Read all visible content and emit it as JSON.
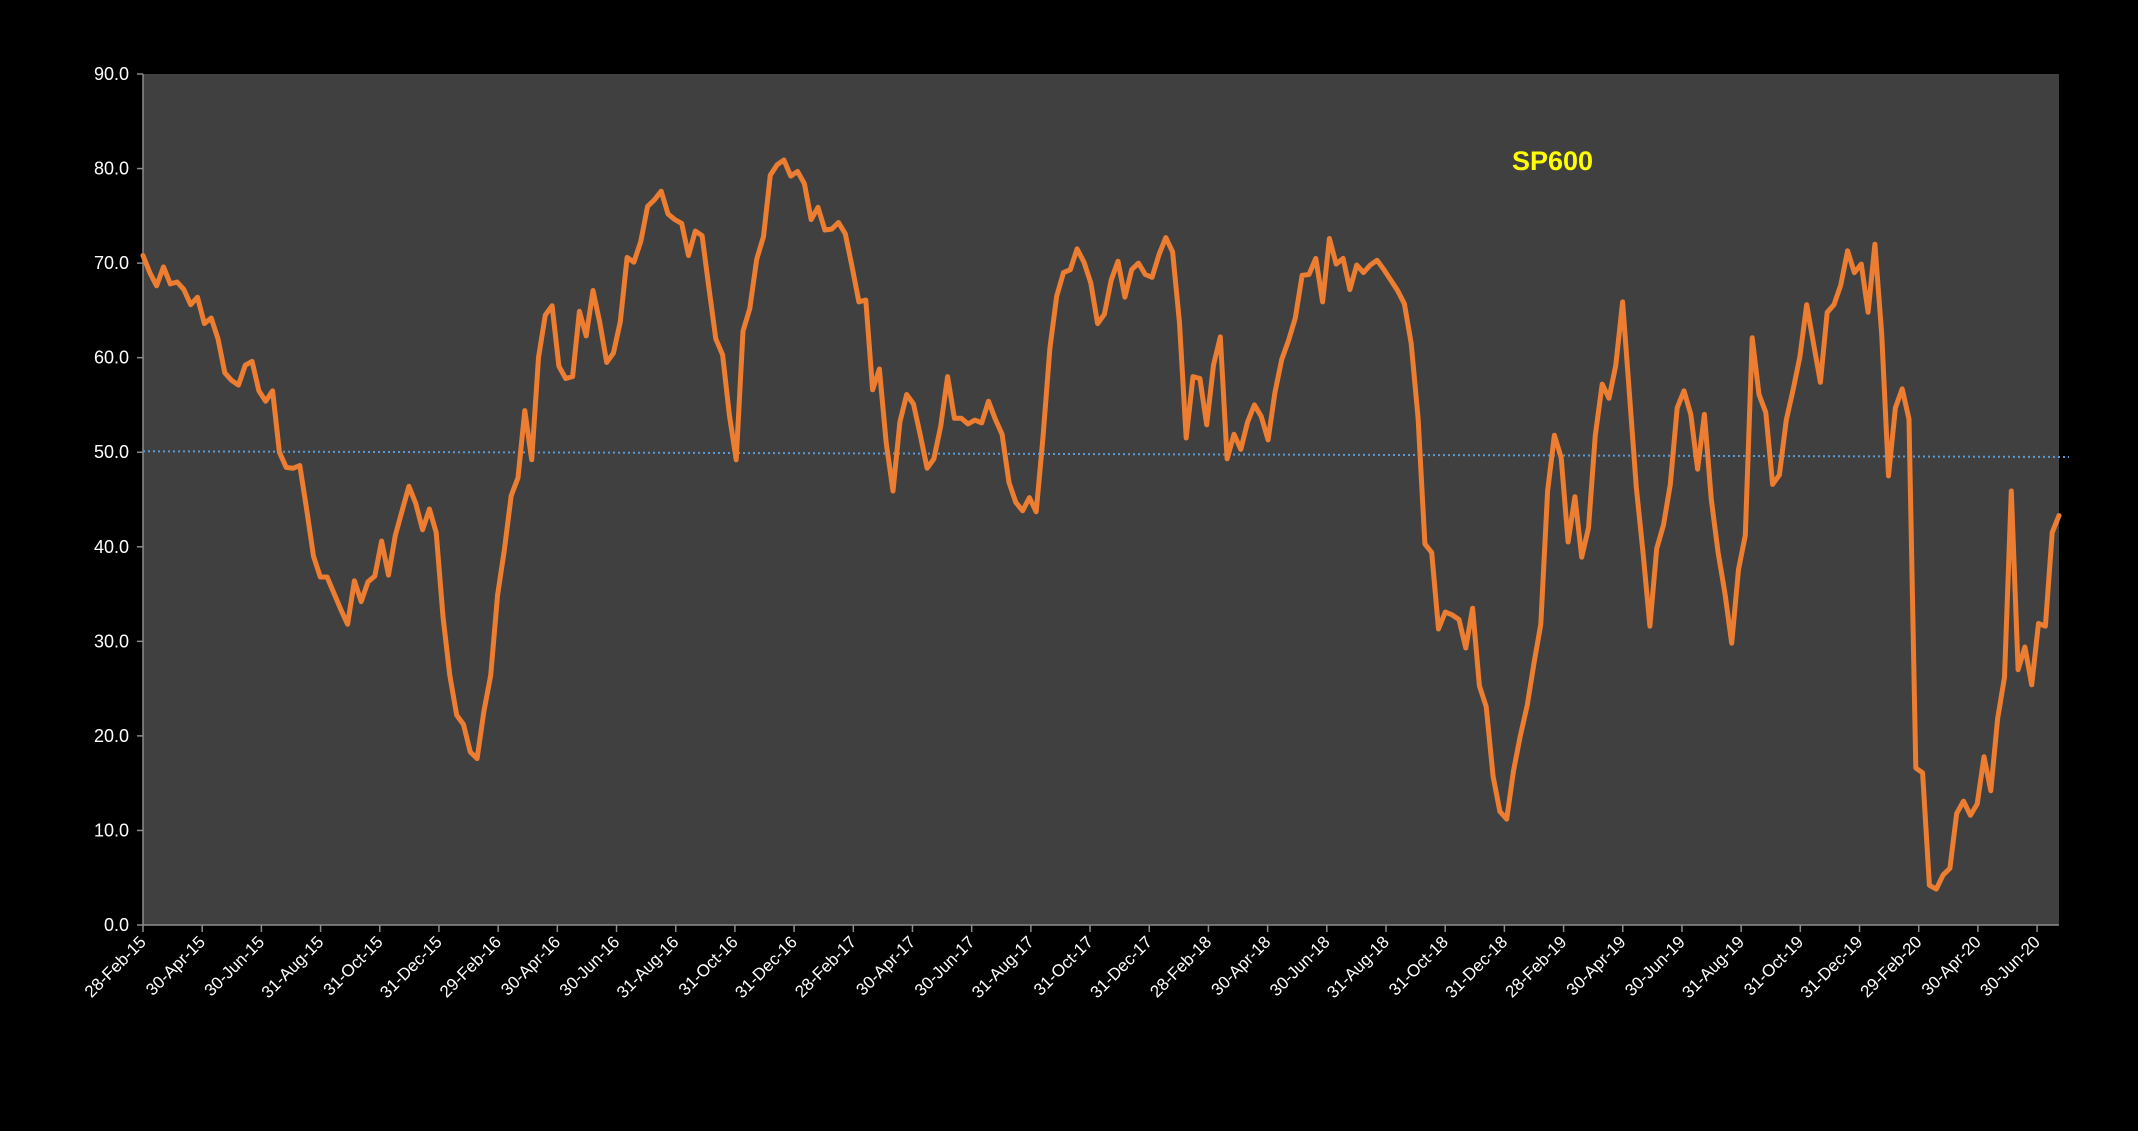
{
  "chart_data": {
    "type": "line",
    "title": "SP600",
    "xlabel": "",
    "ylabel": "",
    "ylim": [
      0,
      90
    ],
    "ytick_step": 10,
    "yticks": [
      "0.0",
      "10.0",
      "20.0",
      "30.0",
      "40.0",
      "50.0",
      "60.0",
      "70.0",
      "80.0",
      "90.0"
    ],
    "xtick_labels": [
      "28-Feb-15",
      "30-Apr-15",
      "30-Jun-15",
      "31-Aug-15",
      "31-Oct-15",
      "31-Dec-15",
      "29-Feb-16",
      "30-Apr-16",
      "30-Jun-16",
      "31-Aug-16",
      "31-Oct-16",
      "31-Dec-16",
      "28-Feb-17",
      "30-Apr-17",
      "30-Jun-17",
      "31-Aug-17",
      "31-Oct-17",
      "31-Dec-17",
      "28-Feb-18",
      "30-Apr-18",
      "30-Jun-18",
      "31-Aug-18",
      "31-Oct-18",
      "31-Dec-18",
      "28-Feb-19",
      "30-Apr-19",
      "30-Jun-19",
      "31-Aug-19",
      "31-Oct-19",
      "31-Dec-19",
      "29-Feb-20",
      "30-Apr-20",
      "30-Jun-20"
    ],
    "x_range_in_tick_units": [
      0,
      32.37
    ],
    "grid": false,
    "colors": {
      "series": "#ed7d31",
      "trendline": "#5b9bd5",
      "title": "#ffff00",
      "plot_bg": "#404040",
      "page_bg": "#000000"
    },
    "series": [
      {
        "name": "SP600",
        "sampling": "weekly, evenly spaced across the x range",
        "values": [
          70.8,
          69.0,
          67.6,
          69.6,
          67.8,
          68.0,
          67.2,
          65.6,
          66.4,
          63.6,
          64.2,
          62.0,
          58.4,
          57.6,
          57.1,
          59.2,
          59.6,
          56.5,
          55.4,
          56.5,
          50.0,
          48.4,
          48.3,
          48.6,
          44.0,
          39.0,
          36.8,
          36.8,
          35.1,
          33.4,
          31.8,
          36.4,
          34.2,
          36.3,
          36.9,
          40.6,
          37.0,
          41.2,
          43.8,
          46.4,
          44.6,
          41.8,
          44.0,
          41.5,
          32.6,
          26.4,
          22.2,
          21.2,
          18.3,
          17.6,
          22.6,
          26.4,
          34.9,
          39.7,
          45.4,
          47.3,
          54.4,
          49.2,
          60.0,
          64.5,
          65.5,
          59.1,
          57.8,
          58.0,
          64.9,
          62.3,
          67.1,
          63.7,
          59.5,
          60.5,
          63.8,
          70.6,
          70.1,
          72.3,
          76.0,
          76.7,
          77.6,
          75.2,
          74.6,
          74.2,
          70.8,
          73.4,
          72.9,
          67.4,
          62.0,
          60.3,
          53.9,
          49.2,
          62.8,
          65.2,
          70.4,
          72.8,
          79.3,
          80.4,
          80.9,
          79.2,
          79.7,
          78.4,
          74.6,
          75.9,
          73.5,
          73.6,
          74.3,
          73.1,
          69.6,
          65.9,
          66.1,
          56.6,
          58.8,
          51.0,
          45.9,
          53.2,
          56.1,
          55.1,
          51.8,
          48.3,
          49.3,
          52.8,
          58.0,
          53.6,
          53.6,
          53.0,
          53.4,
          53.1,
          55.4,
          53.5,
          51.9,
          46.8,
          44.7,
          43.8,
          45.2,
          43.7,
          51.6,
          61.0,
          66.5,
          69.0,
          69.3,
          71.5,
          70.1,
          67.9,
          63.6,
          64.6,
          68.2,
          70.2,
          66.4,
          69.3,
          70.0,
          68.8,
          68.5,
          70.9,
          72.7,
          71.2,
          63.8,
          51.5,
          58.0,
          57.8,
          52.9,
          59.2,
          62.2,
          49.3,
          51.9,
          50.3,
          53.2,
          55.0,
          53.8,
          51.3,
          56.3,
          59.8,
          61.8,
          64.2,
          68.7,
          68.8,
          70.5,
          65.9,
          72.6,
          69.9,
          70.5,
          67.2,
          69.8,
          69.0,
          69.8,
          70.3,
          69.3,
          68.2,
          67.1,
          65.7,
          61.5,
          53.6,
          40.3,
          39.4,
          31.3,
          33.1,
          32.8,
          32.3,
          29.3,
          33.5,
          25.3,
          23.1,
          15.7,
          12.0,
          11.2,
          16.3,
          20.0,
          23.2,
          27.7,
          31.8,
          45.9,
          51.8,
          49.4,
          40.5,
          45.3,
          38.9,
          42.0,
          51.8,
          57.2,
          55.7,
          59.2,
          65.9,
          56.2,
          46.3,
          39.3,
          31.6,
          39.8,
          42.3,
          46.6,
          54.7,
          56.5,
          54.0,
          48.2,
          54.0,
          45.0,
          39.4,
          35.1,
          29.8,
          37.6,
          41.2,
          62.1,
          56.1,
          54.2,
          46.6,
          47.6,
          53.4,
          56.6,
          60.1,
          65.6,
          61.5,
          57.4,
          64.8,
          65.6,
          67.7,
          71.3,
          69.0,
          69.9,
          64.8,
          72.0,
          62.5,
          47.5,
          54.7,
          56.7,
          53.5,
          16.6,
          16.1,
          4.2,
          3.8,
          5.3,
          6.0,
          11.8,
          13.1,
          11.6,
          12.8,
          17.8,
          14.2,
          21.8,
          26.2,
          45.9,
          27.0,
          29.4,
          25.4,
          31.9,
          31.6,
          41.5,
          43.3
        ]
      }
    ],
    "trendline": {
      "type": "linear",
      "start_value": 50.1,
      "end_value": 49.5,
      "style": "dotted"
    }
  }
}
